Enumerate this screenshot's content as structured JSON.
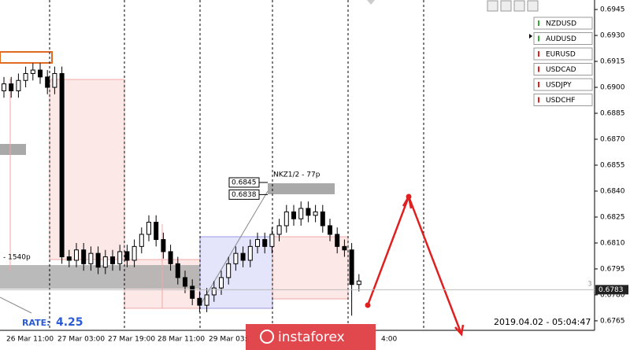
{
  "chart_data": {
    "type": "candlestick",
    "x_labels": [
      "26 Mar 11:00",
      "27 Mar 03:00",
      "27 Mar 19:00",
      "28 Mar 11:00",
      "29 Mar 03:",
      "4:00"
    ],
    "open": [
      0.6898,
      0.6902,
      0.6898,
      0.6904,
      0.6908,
      0.691,
      0.6906,
      0.69,
      0.6908,
      0.6802,
      0.68,
      0.6806,
      0.6798,
      0.6804,
      0.6796,
      0.6802,
      0.6798,
      0.6805,
      0.68,
      0.6808,
      0.6815,
      0.6822,
      0.6812,
      0.6805,
      0.6798,
      0.679,
      0.6785,
      0.6778,
      0.6774,
      0.678,
      0.6784,
      0.679,
      0.6798,
      0.6804,
      0.68,
      0.6808,
      0.6812,
      0.6808,
      0.6815,
      0.682,
      0.6828,
      0.6824,
      0.683,
      0.6826,
      0.6828,
      0.682,
      0.6815,
      0.6808,
      0.6806,
      0.6786
    ],
    "high": [
      0.6906,
      0.6906,
      0.6908,
      0.6912,
      0.6914,
      0.6914,
      0.691,
      0.6912,
      0.6912,
      0.6806,
      0.681,
      0.681,
      0.6808,
      0.6808,
      0.6806,
      0.6806,
      0.6809,
      0.6809,
      0.6812,
      0.6819,
      0.6826,
      0.6826,
      0.6816,
      0.6809,
      0.6802,
      0.6794,
      0.6789,
      0.6782,
      0.6784,
      0.6788,
      0.6794,
      0.6802,
      0.6808,
      0.6808,
      0.6812,
      0.6816,
      0.6816,
      0.6819,
      0.6824,
      0.6832,
      0.6832,
      0.6834,
      0.6834,
      0.6832,
      0.6832,
      0.6824,
      0.6819,
      0.6812,
      0.681,
      0.6792
    ],
    "low": [
      0.6894,
      0.6894,
      0.6894,
      0.69,
      0.6904,
      0.6902,
      0.6896,
      0.6896,
      0.6798,
      0.6796,
      0.6796,
      0.6794,
      0.6794,
      0.6792,
      0.6792,
      0.6794,
      0.6794,
      0.6796,
      0.6796,
      0.6804,
      0.6811,
      0.6808,
      0.6801,
      0.6794,
      0.6786,
      0.6781,
      0.6774,
      0.677,
      0.677,
      0.6776,
      0.678,
      0.6786,
      0.6794,
      0.6796,
      0.6796,
      0.6804,
      0.6804,
      0.6804,
      0.6811,
      0.6816,
      0.682,
      0.682,
      0.6822,
      0.6822,
      0.6816,
      0.6811,
      0.6804,
      0.6802,
      0.6768,
      0.6782
    ],
    "close": [
      0.6902,
      0.6898,
      0.6904,
      0.6908,
      0.691,
      0.6906,
      0.69,
      0.6908,
      0.6802,
      0.68,
      0.6806,
      0.6798,
      0.6804,
      0.6796,
      0.6802,
      0.6798,
      0.6805,
      0.68,
      0.6808,
      0.6815,
      0.6822,
      0.6812,
      0.6805,
      0.6798,
      0.679,
      0.6785,
      0.6778,
      0.6774,
      0.678,
      0.6784,
      0.679,
      0.6798,
      0.6804,
      0.68,
      0.6808,
      0.6812,
      0.6808,
      0.6815,
      0.682,
      0.6828,
      0.6824,
      0.683,
      0.6826,
      0.6828,
      0.682,
      0.6815,
      0.6808,
      0.6806,
      0.6786,
      0.6788
    ],
    "ylim": [
      0.67595,
      0.69505
    ],
    "yticks": [
      0.6945,
      {
        "value": 0.693,
        "label": "0.6930"
      },
      0.6915,
      {
        "value": 0.69,
        "label": "0.6900"
      },
      0.6885,
      {
        "value": 0.687,
        "label": "0.6870"
      },
      0.6855,
      {
        "value": 0.684,
        "label": "0.6840"
      },
      0.6825,
      {
        "value": 0.681,
        "label": "0.6810"
      },
      0.6795,
      {
        "value": 0.678,
        "label": "0.6780"
      },
      0.6765
    ],
    "current_price": 0.6783,
    "level_labels": [
      0.6845,
      0.6838
    ],
    "annotations": {
      "target": "NKZ1/2 - 77p",
      "range": "- 1540p",
      "count": "3"
    },
    "rate_label": "RATE:",
    "rate": 4.25,
    "timestamp": "2019.04.02 - 05:04:47"
  },
  "symbols": [
    "NZDUSD",
    "AUDUSD",
    "EURUSD",
    "USDCAD",
    "USDJPY",
    "USDCHF"
  ],
  "logo": "instaforex"
}
